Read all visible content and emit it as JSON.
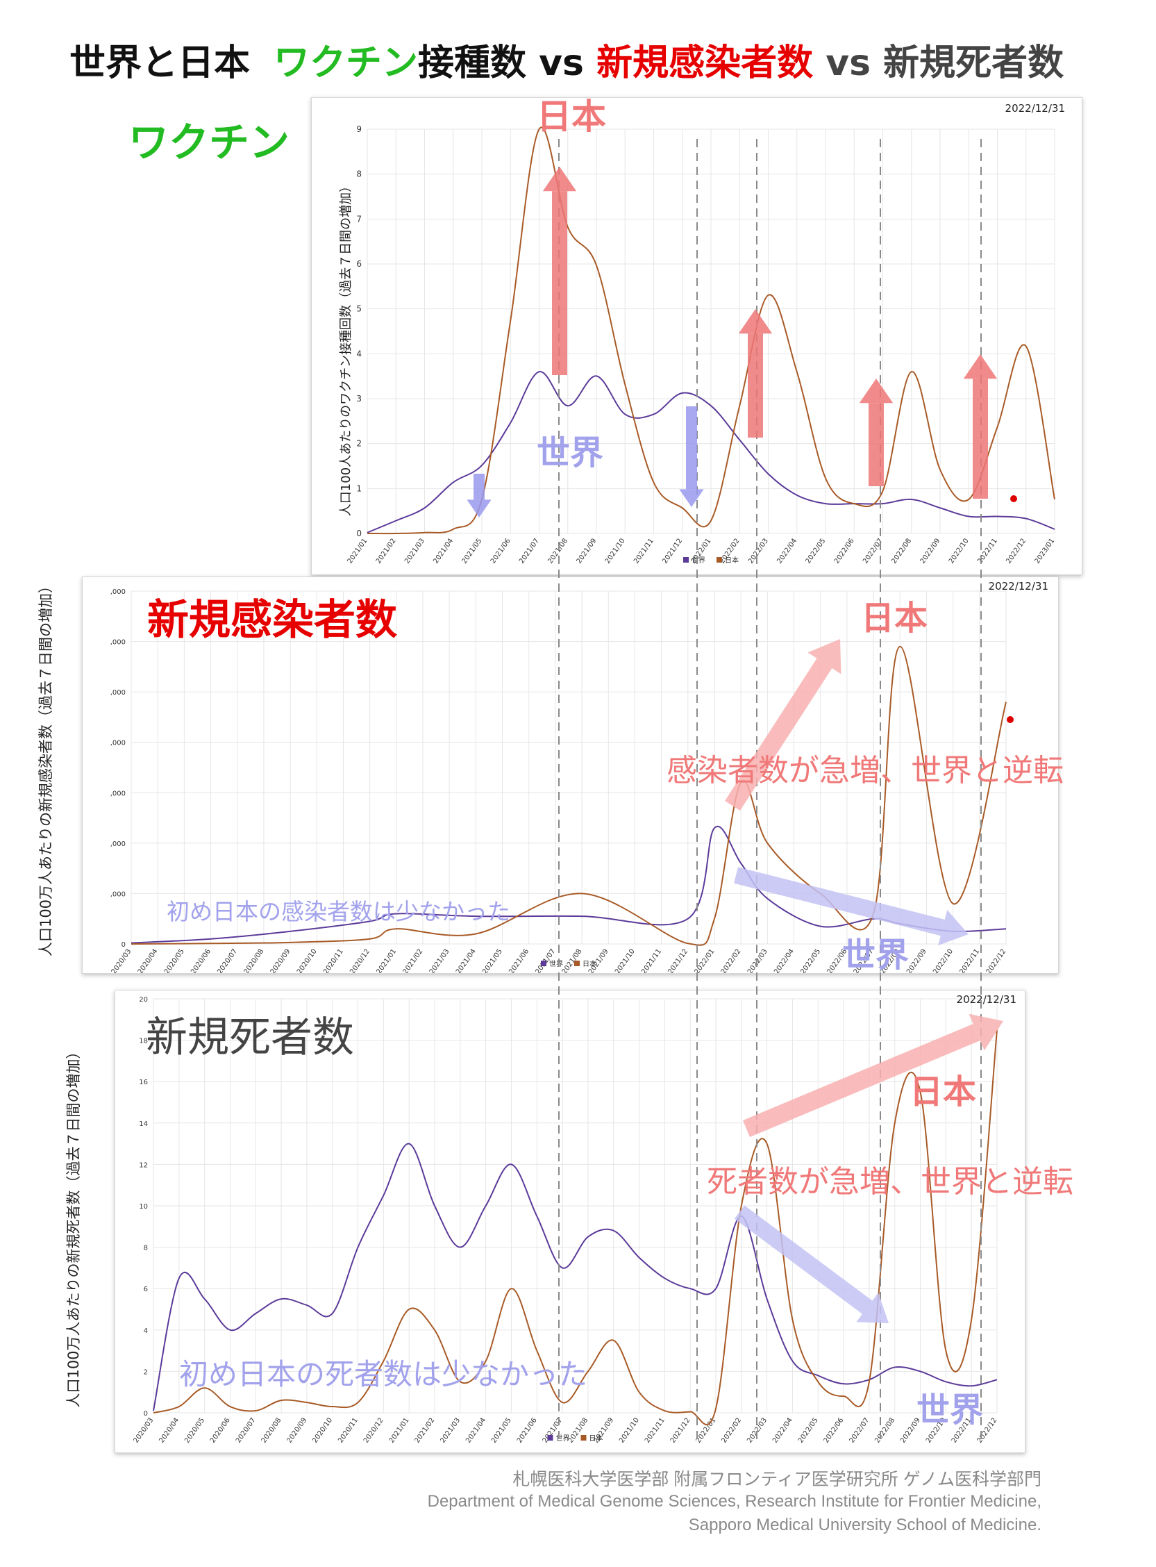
{
  "title": {
    "part1": "世界と日本",
    "part2": "ワクチン",
    "part3": "接種数 vs ",
    "part4": "新規感染者数",
    "part5": " vs 新規死者数",
    "color_green": "#22bb22",
    "color_red": "#e60000",
    "color_dark": "#111111",
    "color_gray": "#444444"
  },
  "colors": {
    "world_line": "#5b3a99",
    "japan_line": "#a85a26",
    "arrow_red": "#ee7777",
    "arrow_blue": "#9999ee",
    "pink_text": "#f07878",
    "lavender_text": "#9a9ae8",
    "red_dot": "#dd0000",
    "grid": "#e6e6e6",
    "dashed": "#8a8a8a"
  },
  "panels": {
    "vaccine": {
      "heading": "ワクチン",
      "heading_color": "#22bb22",
      "date": "2022/12/31",
      "ylabel": "人口100人あたりのワクチン接種回数（過去７日間の増加）",
      "legend": [
        "世界",
        "日本"
      ],
      "japan_label": "日本",
      "world_label": "世界",
      "small_japan": "日本",
      "small_world": "世界"
    },
    "cases": {
      "heading": "新規感染者数",
      "heading_color": "#e60000",
      "date": "2022/12/31",
      "ylabel": "人口100万人あたりの新規感染者数（過去７日間の増加）",
      "legend": [
        "世界",
        "日本"
      ],
      "japan_label": "日本",
      "world_label": "世界",
      "note_japan": "感染者数が急増、世界と逆転",
      "note_world": "初め日本の感染者数は少なかった"
    },
    "deaths": {
      "heading": "新規死者数",
      "heading_color": "#444444",
      "date": "2022/12/31",
      "ylabel": "人口100万人あたりの新規死者数（過去７日間の増加）",
      "legend": [
        "世界",
        "日本"
      ],
      "japan_label": "日本",
      "world_label": "世界",
      "note_japan": "死者数が急増、世界と逆転",
      "note_world": "初め日本の死者数は少なかった"
    }
  },
  "footer": {
    "line1": "札幌医科大学医学部 附属フロンティア医学研究所 ゲノム医科学部門",
    "line2": "Department of Medical Genome Sciences, Research Institute for Frontier Medicine,",
    "line3": "Sapporo Medical University School of Medicine."
  },
  "chart_data": [
    {
      "type": "line",
      "title": "ワクチン",
      "ylabel": "人口100人あたりのワクチン接種回数（過去７日間の増加）",
      "ylim": [
        0,
        9.5
      ],
      "yticks": [
        0,
        1,
        2,
        3,
        4,
        5,
        6,
        7,
        8,
        9
      ],
      "xticks": [
        "2021/01",
        "2021/02",
        "2021/03",
        "2021/04",
        "2021/05",
        "2021/06",
        "2021/07",
        "2021/08",
        "2021/09",
        "2021/10",
        "2021/11",
        "2021/12",
        "2022/01",
        "2022/02",
        "2022/03",
        "2022/04",
        "2022/05",
        "2022/06",
        "2022/07",
        "2022/08",
        "2022/09",
        "2022/10",
        "2022/11",
        "2022/12",
        "2023/01"
      ],
      "grid": true,
      "legend_position": "bottom",
      "series": [
        {
          "name": "世界",
          "x": [
            "2021/01",
            "2021/02",
            "2021/03",
            "2021/04",
            "2021/05",
            "2021/06",
            "2021/07",
            "2021/08",
            "2021/09",
            "2021/10",
            "2021/11",
            "2021/12",
            "2022/01",
            "2022/02",
            "2022/03",
            "2022/04",
            "2022/05",
            "2022/06",
            "2022/07",
            "2022/08",
            "2022/09",
            "2022/10",
            "2022/11",
            "2022/12",
            "2023/01"
          ],
          "values": [
            0.02,
            0.3,
            0.6,
            1.2,
            1.6,
            2.6,
            3.8,
            3.0,
            3.7,
            2.8,
            2.8,
            3.3,
            3.0,
            2.2,
            1.4,
            0.9,
            0.7,
            0.7,
            0.7,
            0.8,
            0.6,
            0.4,
            0.4,
            0.35,
            0.1
          ]
        },
        {
          "name": "日本",
          "x": [
            "2021/01",
            "2021/02",
            "2021/03",
            "2021/04",
            "2021/05",
            "2021/06",
            "2021/07",
            "2021/08",
            "2021/09",
            "2021/10",
            "2021/11",
            "2021/12",
            "2022/01",
            "2022/02",
            "2022/03",
            "2022/04",
            "2022/05",
            "2022/06",
            "2022/07",
            "2022/08",
            "2022/09",
            "2022/10",
            "2022/11",
            "2022/12",
            "2023/01"
          ],
          "values": [
            0,
            0,
            0.02,
            0.1,
            0.8,
            5.0,
            9.5,
            7.2,
            6.3,
            3.5,
            1.2,
            0.6,
            0.3,
            3.0,
            5.6,
            3.8,
            1.3,
            0.7,
            1.0,
            3.8,
            1.5,
            0.8,
            2.5,
            4.4,
            0.8
          ]
        }
      ]
    },
    {
      "type": "line",
      "title": "新規感染者数",
      "ylabel": "人口100万人あたりの新規感染者数（過去７日間の増加）",
      "xticks": [
        "2020/03",
        "2020/04",
        "2020/05",
        "2020/06",
        "2020/07",
        "2020/08",
        "2020/09",
        "2020/10",
        "2020/11",
        "2020/12",
        "2021/01",
        "2021/02",
        "2021/03",
        "2021/04",
        "2021/05",
        "2021/06",
        "2021/07",
        "2021/08",
        "2021/09",
        "2021/10",
        "2021/11",
        "2021/12",
        "2022/01",
        "2022/02",
        "2022/03",
        "2022/04",
        "2022/05",
        "2022/06",
        "2022/07",
        "2022/08",
        "2022/09",
        "2022/10",
        "2022/11",
        "2022/12"
      ],
      "yticks_visible": [
        ",000",
        ",000",
        ",000",
        ",000",
        ",000",
        ",000",
        ",000",
        "0"
      ],
      "grid": true,
      "legend_position": "bottom",
      "series": [
        {
          "name": "世界",
          "x": [
            "2020/03",
            "2020/06",
            "2020/09",
            "2020/12",
            "2021/01",
            "2021/04",
            "2021/08",
            "2021/12",
            "2022/01",
            "2022/02",
            "2022/03",
            "2022/05",
            "2022/07",
            "2022/08",
            "2022/10",
            "2022/12"
          ],
          "values": [
            0.02,
            0.1,
            0.25,
            0.45,
            0.6,
            0.55,
            0.55,
            0.5,
            2.3,
            1.6,
            0.9,
            0.35,
            0.5,
            0.4,
            0.25,
            0.3
          ]
        },
        {
          "name": "日本",
          "x": [
            "2020/03",
            "2020/06",
            "2020/09",
            "2020/12",
            "2021/01",
            "2021/04",
            "2021/08",
            "2021/12",
            "2022/01",
            "2022/02",
            "2022/03",
            "2022/05",
            "2022/07",
            "2022/08",
            "2022/10",
            "2022/12"
          ],
          "values": [
            0,
            0.01,
            0.03,
            0.1,
            0.3,
            0.2,
            1.0,
            0.01,
            0.5,
            3.2,
            2.0,
            1.0,
            0.6,
            5.9,
            0.8,
            4.8
          ]
        }
      ]
    },
    {
      "type": "line",
      "title": "新規死者数",
      "ylabel": "人口100万人あたりの新規死者数（過去７日間の増加）",
      "ylim": [
        0,
        20
      ],
      "yticks": [
        0,
        2,
        4,
        6,
        8,
        10,
        12,
        14,
        16,
        18,
        20
      ],
      "xticks": [
        "2020/03",
        "2020/04",
        "2020/05",
        "2020/06",
        "2020/07",
        "2020/08",
        "2020/09",
        "2020/10",
        "2020/11",
        "2020/12",
        "2021/01",
        "2021/02",
        "2021/03",
        "2021/04",
        "2021/05",
        "2021/06",
        "2021/07",
        "2021/08",
        "2021/09",
        "2021/10",
        "2021/11",
        "2021/12",
        "2022/01",
        "2022/02",
        "2022/03",
        "2022/04",
        "2022/05",
        "2022/06",
        "2022/07",
        "2022/08",
        "2022/09",
        "2022/10",
        "2022/11",
        "2022/12"
      ],
      "grid": true,
      "legend_position": "bottom",
      "series": [
        {
          "name": "世界",
          "x": [
            "2020/03",
            "2020/04",
            "2020/05",
            "2020/06",
            "2020/07",
            "2020/08",
            "2020/09",
            "2020/10",
            "2020/11",
            "2020/12",
            "2021/01",
            "2021/02",
            "2021/03",
            "2021/04",
            "2021/05",
            "2021/06",
            "2021/07",
            "2021/08",
            "2021/09",
            "2021/10",
            "2021/11",
            "2021/12",
            "2022/01",
            "2022/02",
            "2022/03",
            "2022/04",
            "2022/05",
            "2022/06",
            "2022/07",
            "2022/08",
            "2022/09",
            "2022/10",
            "2022/11",
            "2022/12"
          ],
          "values": [
            0.1,
            6.5,
            5.5,
            4.0,
            4.8,
            5.5,
            5.2,
            4.8,
            8.0,
            10.5,
            13.0,
            10.0,
            8.0,
            10.0,
            12.0,
            9.5,
            7.0,
            8.5,
            8.8,
            7.5,
            6.5,
            6.0,
            6.0,
            9.5,
            5.5,
            2.5,
            1.8,
            1.4,
            1.6,
            2.2,
            2.0,
            1.5,
            1.3,
            1.6
          ]
        },
        {
          "name": "日本",
          "x": [
            "2020/03",
            "2020/04",
            "2020/05",
            "2020/06",
            "2020/07",
            "2020/08",
            "2020/09",
            "2020/10",
            "2020/11",
            "2020/12",
            "2021/01",
            "2021/02",
            "2021/03",
            "2021/04",
            "2021/05",
            "2021/06",
            "2021/07",
            "2021/08",
            "2021/09",
            "2021/10",
            "2021/11",
            "2021/12",
            "2022/01",
            "2022/02",
            "2022/03",
            "2022/04",
            "2022/05",
            "2022/06",
            "2022/07",
            "2022/08",
            "2022/09",
            "2022/10",
            "2022/11",
            "2022/12"
          ],
          "values": [
            0,
            0.3,
            1.2,
            0.3,
            0.1,
            0.6,
            0.5,
            0.3,
            0.5,
            2.5,
            5.0,
            4.0,
            1.5,
            2.5,
            6.0,
            3.0,
            0.5,
            2.0,
            3.5,
            1.0,
            0.1,
            0.05,
            0.2,
            10.0,
            13.0,
            4.5,
            1.5,
            0.8,
            1.5,
            14.0,
            15.5,
            3.0,
            4.5,
            18.5
          ]
        }
      ]
    }
  ]
}
